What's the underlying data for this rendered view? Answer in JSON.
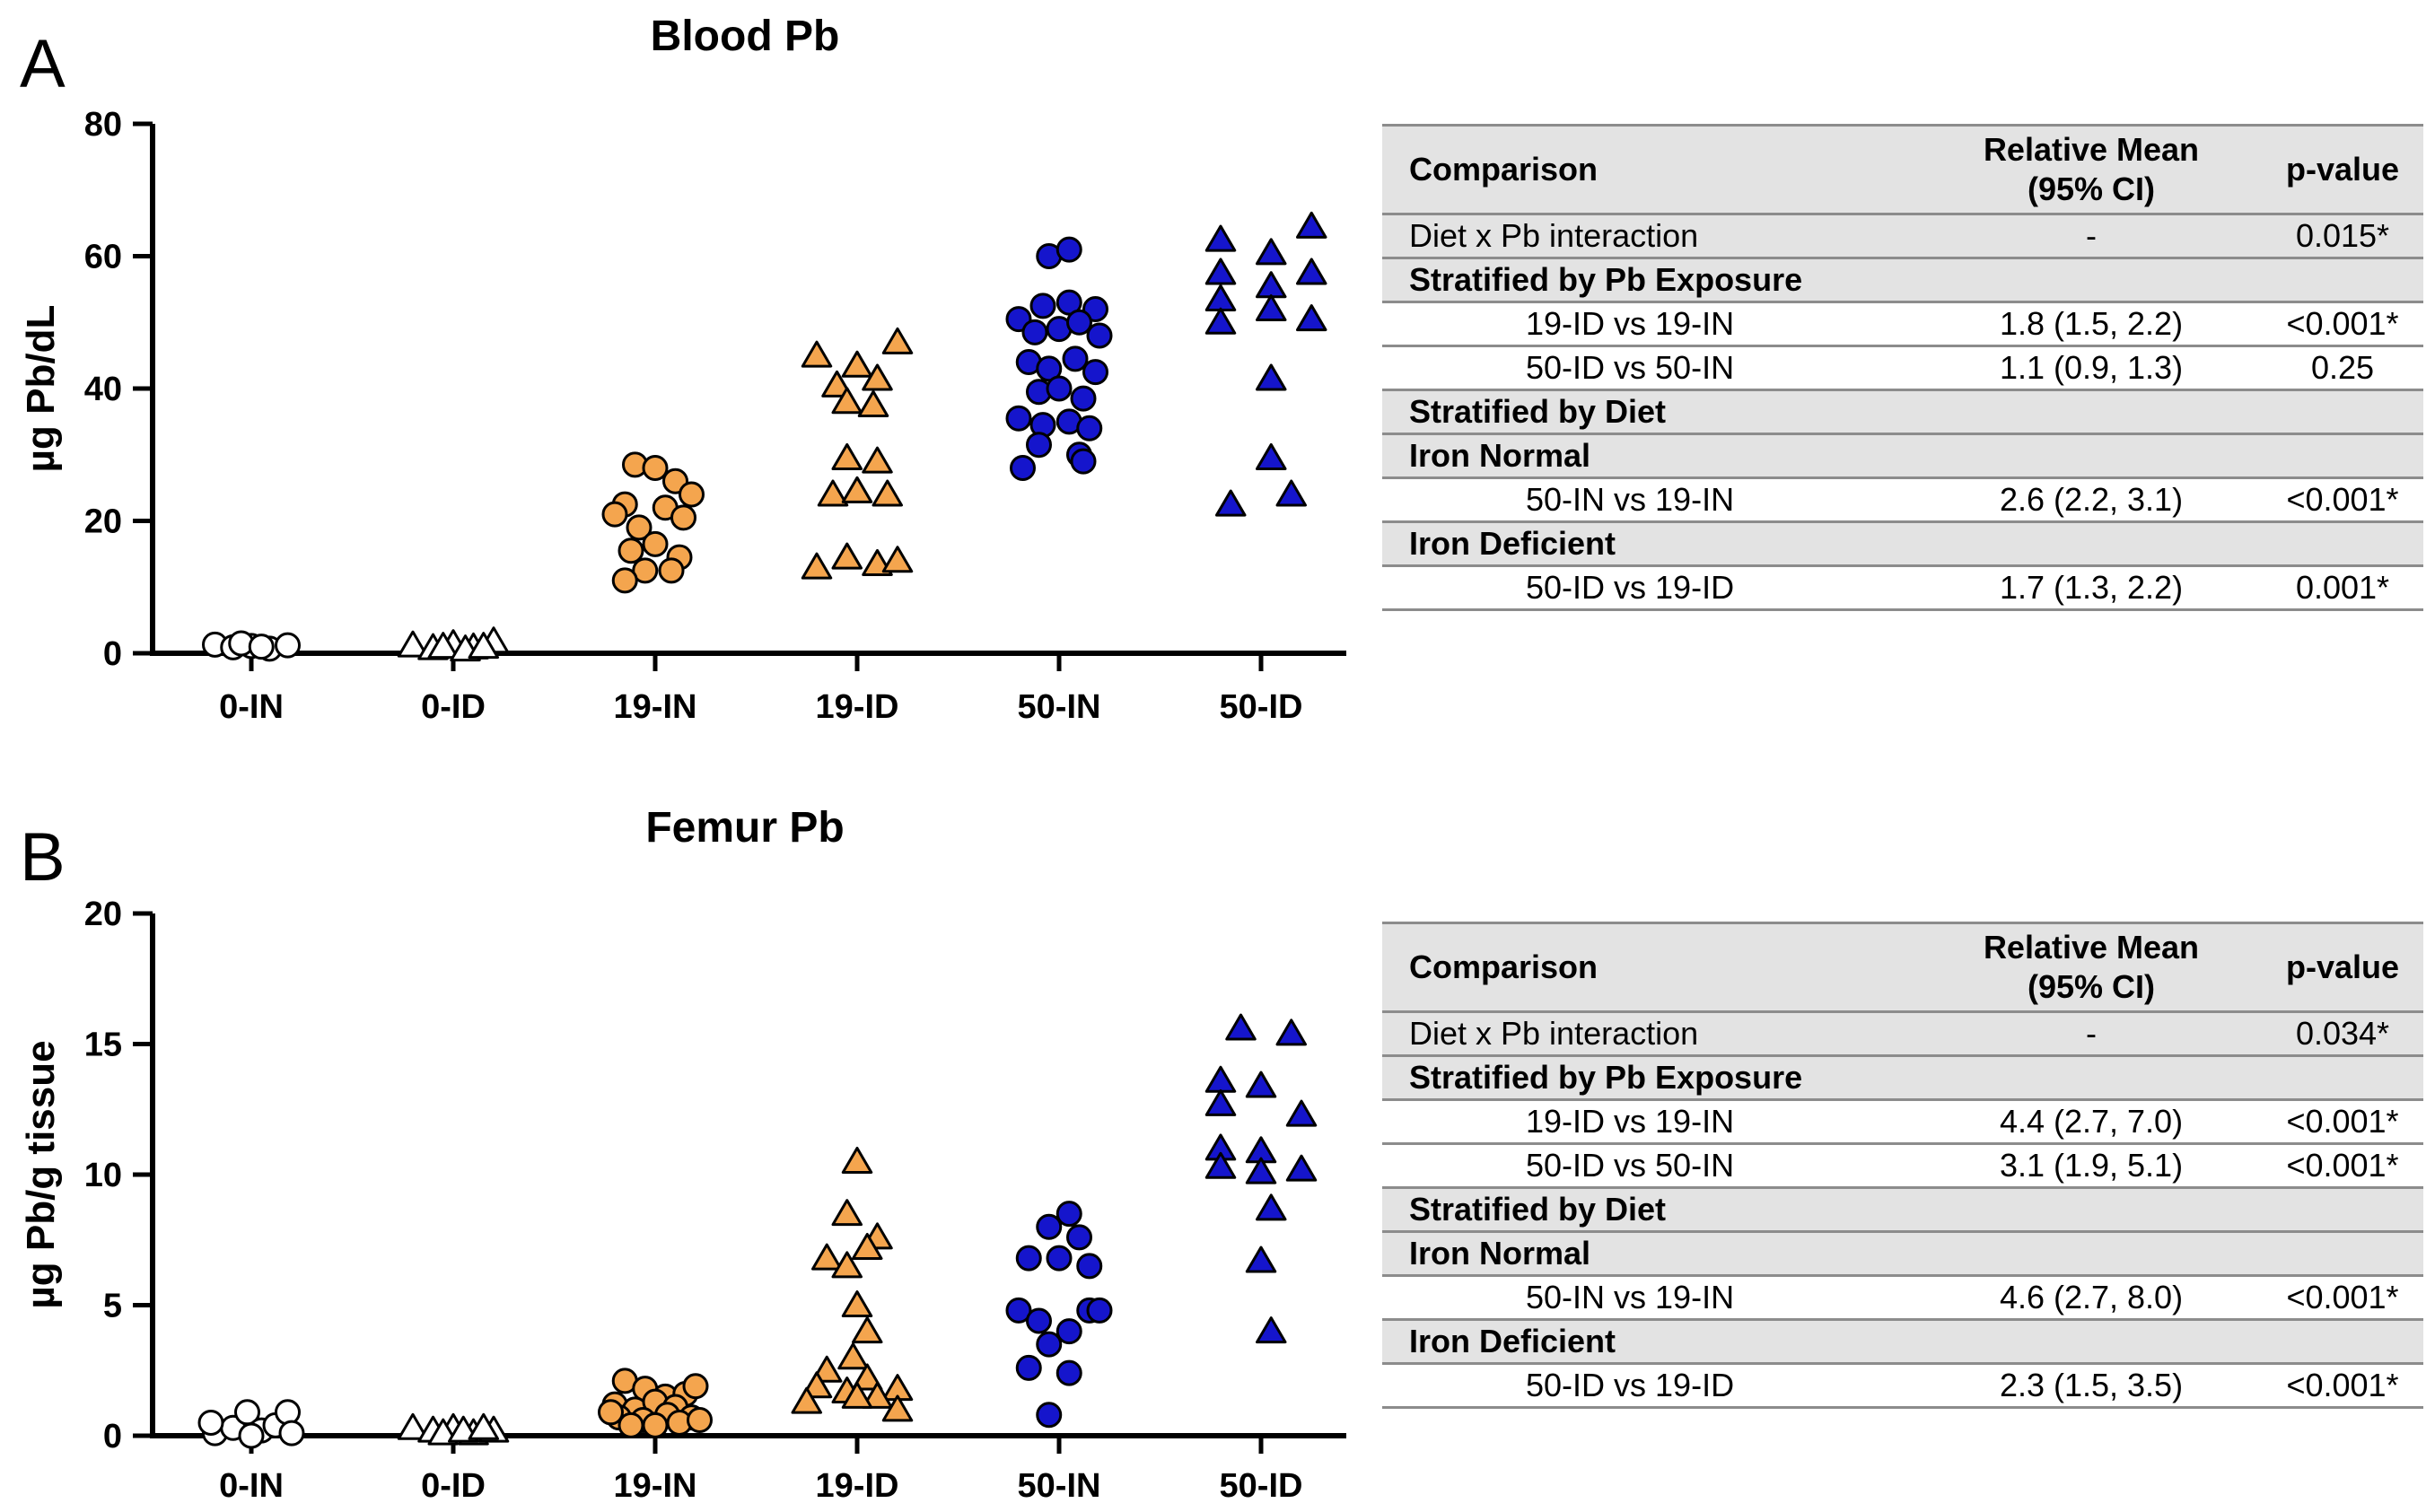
{
  "panels": [
    {
      "letter": "A",
      "chart_data": {
        "type": "scatter",
        "title": "Blood Pb",
        "ylabel": "µg Pb/dL",
        "xlabel": "",
        "ylim": [
          0,
          80
        ],
        "yticks": [
          0,
          20,
          40,
          60,
          80
        ],
        "categories": [
          "0-IN",
          "0-ID",
          "19-IN",
          "19-ID",
          "50-IN",
          "50-ID"
        ],
        "groups": [
          {
            "category": "0-IN",
            "marker": "circle",
            "fill": "#ffffff",
            "points": [
              [
                -0.18,
                1.3
              ],
              [
                -0.09,
                0.9
              ],
              [
                0.0,
                1.1
              ],
              [
                0.09,
                0.7
              ],
              [
                0.18,
                1.2
              ],
              [
                -0.05,
                1.5
              ],
              [
                0.05,
                1.0
              ]
            ]
          },
          {
            "category": "0-ID",
            "marker": "triangle",
            "fill": "#ffffff",
            "points": [
              [
                -0.2,
                1.2
              ],
              [
                -0.1,
                0.8
              ],
              [
                0.0,
                1.4
              ],
              [
                0.1,
                0.9
              ],
              [
                0.2,
                1.8
              ],
              [
                -0.05,
                1.0
              ],
              [
                0.06,
                0.6
              ],
              [
                0.15,
                1.0
              ]
            ]
          },
          {
            "category": "19-IN",
            "marker": "circle",
            "fill": "#f4a54e",
            "points": [
              [
                -0.1,
                28.5
              ],
              [
                0.0,
                28.0
              ],
              [
                0.1,
                26.0
              ],
              [
                -0.15,
                22.5
              ],
              [
                0.05,
                22.0
              ],
              [
                0.18,
                24.0
              ],
              [
                -0.2,
                21.0
              ],
              [
                0.14,
                20.5
              ],
              [
                -0.08,
                19.0
              ],
              [
                -0.12,
                15.5
              ],
              [
                0.0,
                16.5
              ],
              [
                0.12,
                14.5
              ],
              [
                -0.05,
                12.5
              ],
              [
                0.08,
                12.5
              ],
              [
                -0.15,
                11.0
              ]
            ]
          },
          {
            "category": "19-ID",
            "marker": "triangle",
            "fill": "#f4a54e",
            "points": [
              [
                -0.2,
                45.0
              ],
              [
                0.0,
                43.5
              ],
              [
                0.2,
                47.0
              ],
              [
                -0.1,
                40.5
              ],
              [
                0.1,
                41.5
              ],
              [
                -0.05,
                38.0
              ],
              [
                0.08,
                37.5
              ],
              [
                -0.05,
                29.5
              ],
              [
                0.1,
                29.0
              ],
              [
                -0.12,
                24.0
              ],
              [
                0.0,
                24.5
              ],
              [
                0.15,
                24.0
              ],
              [
                -0.2,
                13.0
              ],
              [
                -0.05,
                14.5
              ],
              [
                0.1,
                13.5
              ],
              [
                0.2,
                14.0
              ]
            ]
          },
          {
            "category": "50-IN",
            "marker": "circle",
            "fill": "#1515cc",
            "points": [
              [
                -0.05,
                60.0
              ],
              [
                0.05,
                61.0
              ],
              [
                -0.2,
                50.5
              ],
              [
                -0.08,
                52.5
              ],
              [
                0.05,
                53.0
              ],
              [
                0.18,
                52.0
              ],
              [
                -0.12,
                48.5
              ],
              [
                0.0,
                49.0
              ],
              [
                0.1,
                50.0
              ],
              [
                0.2,
                48.0
              ],
              [
                -0.15,
                44.0
              ],
              [
                -0.05,
                43.0
              ],
              [
                0.08,
                44.5
              ],
              [
                0.18,
                42.5
              ],
              [
                -0.1,
                39.5
              ],
              [
                0.0,
                40.0
              ],
              [
                0.12,
                38.5
              ],
              [
                -0.2,
                35.5
              ],
              [
                -0.08,
                34.5
              ],
              [
                0.05,
                35.0
              ],
              [
                0.15,
                34.0
              ],
              [
                -0.1,
                31.5
              ],
              [
                0.1,
                30.0
              ],
              [
                -0.18,
                28.0
              ],
              [
                0.12,
                29.0
              ]
            ]
          },
          {
            "category": "50-ID",
            "marker": "triangle",
            "fill": "#1515cc",
            "points": [
              [
                -0.2,
                62.5
              ],
              [
                0.05,
                60.5
              ],
              [
                0.25,
                64.5
              ],
              [
                -0.2,
                57.5
              ],
              [
                0.05,
                55.5
              ],
              [
                0.25,
                57.5
              ],
              [
                -0.2,
                53.5
              ],
              [
                0.05,
                52.0
              ],
              [
                -0.2,
                50.0
              ],
              [
                0.25,
                50.5
              ],
              [
                0.05,
                41.5
              ],
              [
                0.05,
                29.5
              ],
              [
                -0.15,
                22.5
              ],
              [
                0.15,
                24.0
              ]
            ]
          }
        ]
      },
      "table": {
        "headers": [
          "Comparison",
          "Relative Mean",
          "(95% CI)",
          "p-value"
        ],
        "rows": [
          {
            "kind": "plain",
            "indent": 0,
            "label": "Diet x Pb interaction",
            "mean": "-",
            "p": "0.015*"
          },
          {
            "kind": "section",
            "label": "Stratified by Pb Exposure"
          },
          {
            "kind": "plain",
            "indent": 1,
            "label": "19-ID vs 19-IN",
            "mean": "1.8 (1.5, 2.2)",
            "p": "<0.001*"
          },
          {
            "kind": "plain",
            "indent": 1,
            "label": "50-ID vs 50-IN",
            "mean": "1.1 (0.9, 1.3)",
            "p": "0.25"
          },
          {
            "kind": "section",
            "label": "Stratified by Diet"
          },
          {
            "kind": "section",
            "label": "Iron Normal"
          },
          {
            "kind": "plain",
            "indent": 1,
            "label": "50-IN vs 19-IN",
            "mean": "2.6 (2.2, 3.1)",
            "p": "<0.001*"
          },
          {
            "kind": "section",
            "label": "Iron Deficient"
          },
          {
            "kind": "plain",
            "indent": 1,
            "label": "50-ID vs 19-ID",
            "mean": "1.7 (1.3, 2.2)",
            "p": "0.001*"
          }
        ]
      }
    },
    {
      "letter": "B",
      "chart_data": {
        "type": "scatter",
        "title": "Femur Pb",
        "ylabel": "µg Pb/g tissue",
        "xlabel": "",
        "ylim": [
          0,
          20
        ],
        "yticks": [
          0,
          5,
          10,
          15,
          20
        ],
        "categories": [
          "0-IN",
          "0-ID",
          "19-IN",
          "19-ID",
          "50-IN",
          "50-ID"
        ],
        "groups": [
          {
            "category": "0-IN",
            "marker": "circle",
            "fill": "#ffffff",
            "points": [
              [
                -0.18,
                0.1
              ],
              [
                -0.09,
                0.3
              ],
              [
                -0.02,
                0.9
              ],
              [
                0.05,
                0.2
              ],
              [
                0.12,
                0.4
              ],
              [
                0.18,
                0.9
              ],
              [
                0.2,
                0.1
              ],
              [
                -0.2,
                0.5
              ],
              [
                0.0,
                0.0
              ]
            ]
          },
          {
            "category": "0-ID",
            "marker": "triangle",
            "fill": "#ffffff",
            "points": [
              [
                -0.2,
                0.3
              ],
              [
                -0.1,
                0.2
              ],
              [
                0.0,
                0.3
              ],
              [
                0.1,
                0.1
              ],
              [
                0.2,
                0.2
              ],
              [
                -0.05,
                0.1
              ],
              [
                0.05,
                0.2
              ],
              [
                0.15,
                0.3
              ]
            ]
          },
          {
            "category": "19-IN",
            "marker": "circle",
            "fill": "#f4a54e",
            "points": [
              [
                -0.15,
                2.1
              ],
              [
                -0.05,
                1.8
              ],
              [
                0.05,
                1.5
              ],
              [
                0.15,
                1.6
              ],
              [
                0.2,
                1.9
              ],
              [
                -0.2,
                1.2
              ],
              [
                -0.1,
                1.0
              ],
              [
                0.0,
                1.3
              ],
              [
                0.1,
                1.1
              ],
              [
                -0.18,
                0.7
              ],
              [
                -0.06,
                0.6
              ],
              [
                0.06,
                0.8
              ],
              [
                0.18,
                0.7
              ],
              [
                -0.12,
                0.4
              ],
              [
                0.0,
                0.4
              ],
              [
                0.12,
                0.5
              ],
              [
                0.22,
                0.6
              ],
              [
                -0.22,
                0.9
              ]
            ]
          },
          {
            "category": "19-ID",
            "marker": "triangle",
            "fill": "#f4a54e",
            "points": [
              [
                0.0,
                10.5
              ],
              [
                -0.05,
                8.5
              ],
              [
                0.1,
                7.6
              ],
              [
                0.05,
                7.2
              ],
              [
                -0.15,
                6.8
              ],
              [
                -0.05,
                6.5
              ],
              [
                0.0,
                5.0
              ],
              [
                0.05,
                4.0
              ],
              [
                -0.02,
                3.0
              ],
              [
                -0.15,
                2.5
              ],
              [
                0.05,
                2.2
              ],
              [
                -0.2,
                1.9
              ],
              [
                0.2,
                1.8
              ],
              [
                -0.05,
                1.7
              ],
              [
                0.1,
                1.5
              ],
              [
                -0.25,
                1.3
              ],
              [
                0.0,
                1.5
              ],
              [
                0.2,
                1.0
              ]
            ]
          },
          {
            "category": "50-IN",
            "marker": "circle",
            "fill": "#1515cc",
            "points": [
              [
                0.05,
                8.5
              ],
              [
                -0.05,
                8.0
              ],
              [
                0.1,
                7.6
              ],
              [
                -0.15,
                6.8
              ],
              [
                0.0,
                6.8
              ],
              [
                0.15,
                6.5
              ],
              [
                -0.2,
                4.8
              ],
              [
                0.15,
                4.8
              ],
              [
                0.2,
                4.8
              ],
              [
                -0.1,
                4.4
              ],
              [
                0.05,
                4.0
              ],
              [
                -0.05,
                3.5
              ],
              [
                -0.15,
                2.6
              ],
              [
                0.05,
                2.4
              ],
              [
                -0.05,
                0.8
              ]
            ]
          },
          {
            "category": "50-ID",
            "marker": "triangle",
            "fill": "#1515cc",
            "points": [
              [
                -0.1,
                15.6
              ],
              [
                0.15,
                15.4
              ],
              [
                -0.2,
                13.6
              ],
              [
                0.0,
                13.4
              ],
              [
                -0.2,
                12.7
              ],
              [
                0.2,
                12.3
              ],
              [
                -0.2,
                11.0
              ],
              [
                0.0,
                10.9
              ],
              [
                -0.2,
                10.3
              ],
              [
                0.0,
                10.1
              ],
              [
                0.2,
                10.2
              ],
              [
                0.05,
                8.7
              ],
              [
                0.0,
                6.7
              ],
              [
                0.05,
                4.0
              ]
            ]
          }
        ]
      },
      "table": {
        "headers": [
          "Comparison",
          "Relative Mean",
          "(95% CI)",
          "p-value"
        ],
        "rows": [
          {
            "kind": "plain",
            "indent": 0,
            "label": "Diet x Pb interaction",
            "mean": "-",
            "p": "0.034*"
          },
          {
            "kind": "section",
            "label": "Stratified by Pb Exposure"
          },
          {
            "kind": "plain",
            "indent": 1,
            "label": "19-ID vs 19-IN",
            "mean": "4.4 (2.7, 7.0)",
            "p": "<0.001*"
          },
          {
            "kind": "plain",
            "indent": 1,
            "label": "50-ID vs 50-IN",
            "mean": "3.1 (1.9, 5.1)",
            "p": "<0.001*"
          },
          {
            "kind": "section",
            "label": "Stratified by Diet"
          },
          {
            "kind": "section",
            "label": "Iron Normal"
          },
          {
            "kind": "plain",
            "indent": 1,
            "label": "50-IN vs 19-IN",
            "mean": "4.6 (2.7, 8.0)",
            "p": "<0.001*"
          },
          {
            "kind": "section",
            "label": "Iron Deficient"
          },
          {
            "kind": "plain",
            "indent": 1,
            "label": "50-ID vs 19-ID",
            "mean": "2.3 (1.5, 3.5)",
            "p": "<0.001*"
          }
        ]
      }
    }
  ]
}
